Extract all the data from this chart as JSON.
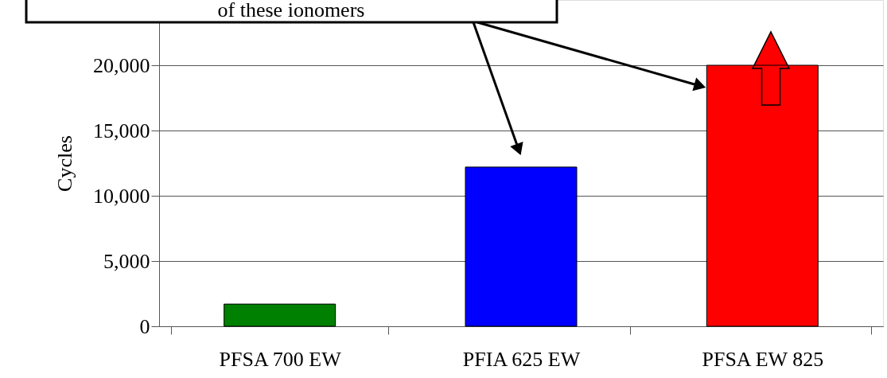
{
  "chart_data": {
    "type": "bar",
    "ylabel": "Cycles",
    "categories": [
      "PFSA 700 EW",
      "PFIA 625 EW",
      "PFSA EW 825"
    ],
    "values": [
      1700,
      12200,
      20000
    ],
    "colors": [
      "#008000",
      "#0000ff",
      "#ff0000"
    ],
    "ylim": [
      0,
      25000
    ],
    "yticks": [
      0,
      {
        "value": 5000,
        "label": "5,000"
      },
      {
        "value": 10000,
        "label": "10,000"
      },
      {
        "value": 15000,
        "label": "15,000"
      },
      {
        "value": 20000,
        "label": "20,000"
      }
    ],
    "grid": "y",
    "annotations": [
      "of these ionomers"
    ]
  }
}
